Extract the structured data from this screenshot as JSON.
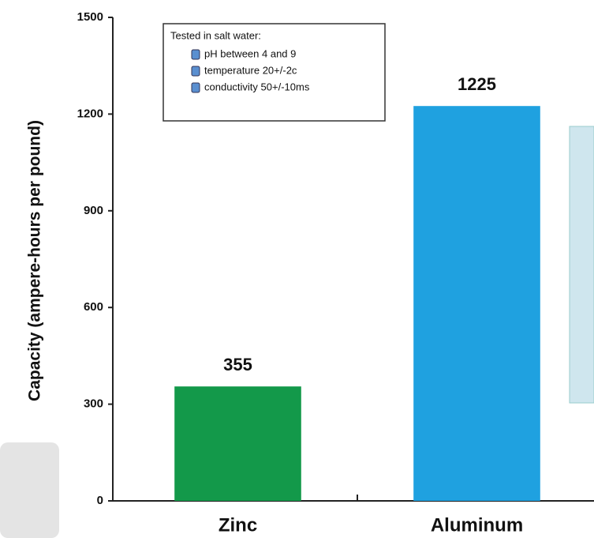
{
  "chart_data": {
    "type": "bar",
    "y_label": "Capacity (ampere-hours per pound)",
    "categories": [
      "Zinc",
      "Aluminum"
    ],
    "values": [
      355,
      1225
    ],
    "colors": [
      "#13994a",
      "#1fa1e0"
    ],
    "ylim": [
      0,
      1500
    ],
    "yticks": [
      0,
      300,
      600,
      900,
      1200,
      1500
    ],
    "legend": {
      "title": "Tested in salt water:",
      "items": [
        "pH between 4 and 9",
        "temperature 20+/-2c",
        "conductivity 50+/-10ms"
      ]
    }
  }
}
